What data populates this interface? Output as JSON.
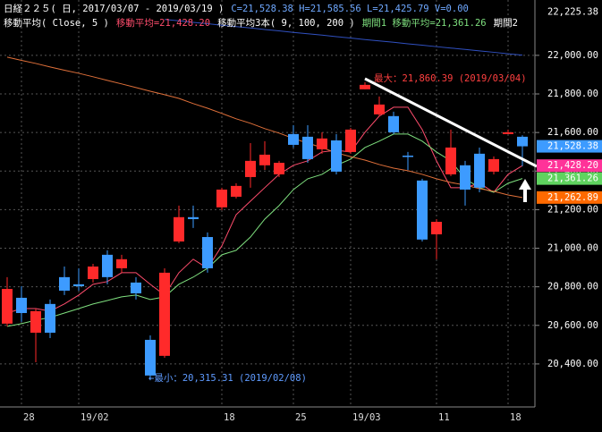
{
  "chart_data": {
    "type": "candlestick",
    "header": [
      [
        {
          "text": "日経２２５( 日, 2017/03/07 - 2019/03/19 )",
          "color": "#ffffff"
        },
        {
          "text": "C=21,528.38 H=21,585.56 L=21,425.79 V=0.00",
          "color": "#6fa8ff"
        }
      ],
      [
        {
          "text": "移動平均( Close, 5 )",
          "color": "#ffffff"
        },
        {
          "text": "移動平均=21,428.20",
          "color": "#ff4d6d"
        },
        {
          "text": "移動平均3本( 9, 100, 200 )",
          "color": "#ffffff"
        },
        {
          "text": "期間1 移動平均=21,361.26",
          "color": "#7fe07f"
        },
        {
          "text": "期間2",
          "color": "#ffffff"
        }
      ]
    ],
    "categories": [
      null,
      "28",
      null,
      null,
      null,
      "19/02",
      null,
      null,
      null,
      null,
      null,
      null,
      null,
      null,
      null,
      "18",
      null,
      null,
      null,
      null,
      "25",
      null,
      null,
      null,
      "19/03",
      null,
      null,
      null,
      null,
      null,
      "11",
      null,
      null,
      null,
      null,
      "18",
      null
    ],
    "open": [
      20609,
      20743,
      20562,
      20711,
      20850,
      20813,
      20840,
      20966,
      20896,
      20822,
      20525,
      20442,
      21035,
      21161,
      21058,
      21212,
      21267,
      21369,
      21430,
      21383,
      21592,
      21578,
      21513,
      21559,
      21499,
      21824,
      21694,
      21685,
      21480,
      21351,
      21072,
      21383,
      21430,
      21490,
      21397,
      21592,
      21578
    ],
    "high": [
      20850,
      20803,
      20687,
      20734,
      20905,
      20896,
      20919,
      20989,
      20966,
      20850,
      20548,
      20896,
      21221,
      21221,
      21082,
      21314,
      21337,
      21545,
      21555,
      21453,
      21638,
      21638,
      21601,
      21592,
      21624,
      21860.39,
      21787,
      21708,
      21499,
      21360,
      21151,
      21615,
      21453,
      21522,
      21476,
      21615,
      21585.56
    ],
    "low": [
      20595,
      20618,
      20409,
      20534,
      20757,
      20780,
      20822,
      20813,
      20873,
      20734,
      20315.31,
      20432,
      21026,
      21105,
      20873,
      21198,
      21258,
      21314,
      21406,
      21369,
      21522,
      21443,
      21490,
      21383,
      21490,
      21824,
      21685,
      21592,
      21406,
      21035,
      20943,
      21374,
      21221,
      21290,
      21383,
      21592,
      21425.79
    ],
    "close": [
      20789,
      20664,
      20674,
      20562,
      20780,
      20803,
      20905,
      20850,
      20943,
      20766,
      20340,
      20873,
      21161,
      21151,
      20896,
      21304,
      21323,
      21453,
      21485,
      21443,
      21536,
      21462,
      21569,
      21397,
      21615,
      21847,
      21745,
      21601,
      21476,
      21045,
      21137,
      21522,
      21304,
      21314,
      21462,
      21601,
      21528.38
    ],
    "up_color": "#ff2a2a",
    "down_color": "#3d9bff",
    "series": [
      {
        "color": "#ff4d6d",
        "values": [
          20664,
          20687,
          20687,
          20674,
          20711,
          20757,
          20813,
          20827,
          20873,
          20873,
          20813,
          20757,
          20873,
          20943,
          20896,
          21012,
          21174,
          21244,
          21314,
          21383,
          21430,
          21453,
          21499,
          21508,
          21499,
          21601,
          21685,
          21731,
          21731,
          21615,
          21453,
          21314,
          21314,
          21337,
          21290,
          21383,
          21428.2
        ]
      },
      {
        "color": "#7fe07f",
        "values": [
          20595,
          20609,
          20627,
          20641,
          20664,
          20687,
          20711,
          20729,
          20748,
          20757,
          20734,
          20748,
          20813,
          20850,
          20896,
          20966,
          20989,
          21058,
          21151,
          21221,
          21304,
          21360,
          21383,
          21430,
          21462,
          21522,
          21555,
          21592,
          21592,
          21555,
          21499,
          21453,
          21360,
          21314,
          21290,
          21337,
          21361.26
        ]
      },
      {
        "color": "#e0703a",
        "values": [
          21991,
          21974,
          21958,
          21940,
          21923,
          21907,
          21889,
          21870,
          21852,
          21833,
          21814,
          21796,
          21777,
          21750,
          21726,
          21699,
          21671,
          21648,
          21620,
          21597,
          21569,
          21545,
          21522,
          21494,
          21475,
          21457,
          21434,
          21415,
          21402,
          21383,
          21360,
          21341,
          21327,
          21309,
          21295,
          21276,
          21262.89
        ]
      },
      {
        "color": "#3050c0",
        "values": [
          null,
          null,
          null,
          null,
          null,
          null,
          null,
          null,
          null,
          null,
          null,
          22186,
          22179,
          22171,
          22164,
          22156,
          22149,
          22142,
          22134,
          22127,
          22119,
          22112,
          22105,
          22097,
          22090,
          22082,
          22075,
          22068,
          22060,
          22053,
          22045,
          22038,
          22031,
          22023,
          22016,
          22008,
          22001
        ]
      }
    ],
    "ylim": [
      20177,
      22287
    ],
    "yticks": [
      {
        "value": 20400,
        "label": "20,400.00"
      },
      {
        "value": 20600,
        "label": "20,600.00"
      },
      {
        "value": 20800,
        "label": "20,800.00"
      },
      {
        "value": 21000,
        "label": "21,000.00"
      },
      {
        "value": 21200,
        "label": "21,200.00"
      },
      {
        "value": 21400,
        "label": "21,400.00"
      },
      {
        "value": 21600,
        "label": "21,600.00"
      },
      {
        "value": 21800,
        "label": "21,800.00"
      },
      {
        "value": 22000,
        "label": "22,000.00"
      }
    ],
    "price_labels": [
      {
        "value": 22225.38,
        "label": "22,225.38",
        "color": "#000000"
      },
      {
        "value": 21528.38,
        "label": "21,528.38",
        "color": "#3d9bff"
      },
      {
        "value": 21428.2,
        "label": "21,428.20",
        "color": "#ff3399"
      },
      {
        "value": 21361.26,
        "label": "21,361.26",
        "color": "#5fd35f"
      },
      {
        "value": 21262.89,
        "label": "21,262.89",
        "color": "#ff6a00"
      }
    ],
    "annotations": [
      {
        "text": "最大：21,860.39 (2019/03/04)",
        "color": "#ff4040"
      },
      {
        "text": "←最小：20,315.31 (2019/02/08)",
        "color": "#5f9bff"
      }
    ],
    "grid": true
  }
}
